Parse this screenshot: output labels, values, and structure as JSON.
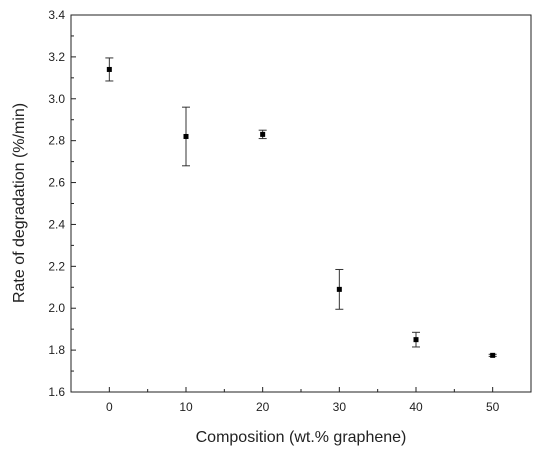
{
  "chart_data": {
    "type": "scatter",
    "title": "",
    "xlabel": "Composition (wt.% graphene)",
    "ylabel": "Rate of degradation (%/min)",
    "xlim": [
      -5,
      55
    ],
    "ylim": [
      1.6,
      3.4
    ],
    "xticks": [
      "0",
      "10",
      "20",
      "30",
      "40",
      "50"
    ],
    "yticks": [
      "1.6",
      "1.8",
      "2.0",
      "2.2",
      "2.4",
      "2.6",
      "2.8",
      "3.0",
      "3.2",
      "3.4"
    ],
    "grid": false,
    "legend": "none",
    "marker": "square",
    "color": "#000000",
    "series": [
      {
        "x": [
          0,
          10,
          20,
          30,
          40,
          50
        ],
        "y": [
          3.14,
          2.82,
          2.83,
          2.09,
          1.85,
          1.775
        ],
        "error": [
          0.055,
          0.14,
          0.02,
          0.095,
          0.035,
          0.005
        ]
      }
    ]
  }
}
